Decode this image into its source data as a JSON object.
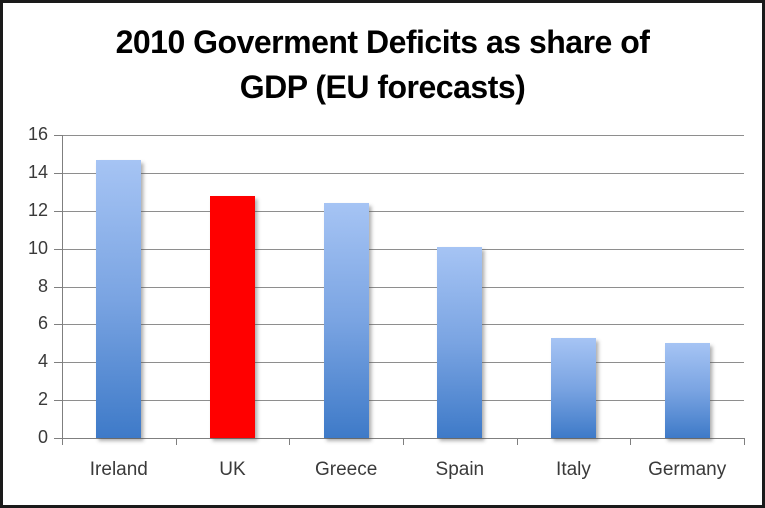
{
  "title": {
    "line1": "2010 Goverment Deficits as share of",
    "line2": "GDP (EU forecasts)"
  },
  "chart_data": {
    "type": "bar",
    "title": "2010 Goverment Deficits as share of GDP (EU forecasts)",
    "categories": [
      "Ireland",
      "UK",
      "Greece",
      "Spain",
      "Italy",
      "Germany"
    ],
    "values": [
      14.7,
      12.8,
      12.4,
      10.1,
      5.3,
      5.0
    ],
    "highlighted_category": "UK",
    "highlight_index": 1,
    "xlabel": "",
    "ylabel": "",
    "ylim": [
      0,
      16
    ],
    "yticks": [
      0,
      2,
      4,
      6,
      8,
      10,
      12,
      14,
      16
    ],
    "grid": true,
    "legend": false,
    "colors": {
      "bar_gradient_top": "#a6c4f4",
      "bar_gradient_mid": "#7aa4e2",
      "bar_gradient_bottom": "#3e7ac8",
      "highlight": "#ff0000",
      "gridline": "#8e8e8e",
      "axis": "#7f7f7f",
      "tick_text": "#3a3a3a",
      "title_text": "#000000",
      "frame_border": "#1a1a1a",
      "background": "#ffffff"
    }
  }
}
